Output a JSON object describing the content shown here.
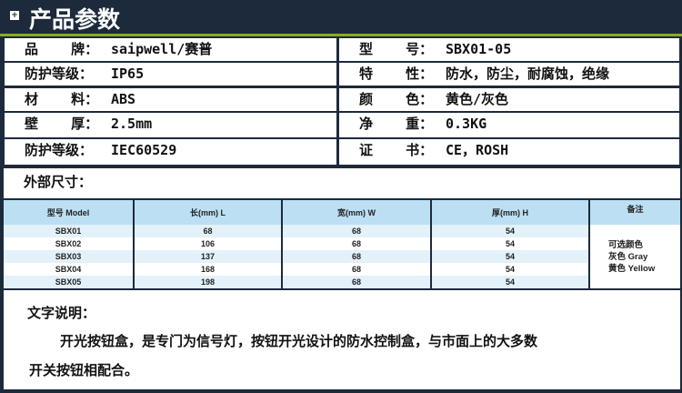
{
  "title": "产品参数",
  "specs_left": [
    {
      "k": "品    牌：",
      "v": "saipwell/赛普"
    },
    {
      "k": "防护等级：",
      "v": "IP65"
    },
    {
      "k": "材    料：",
      "v": "ABS"
    },
    {
      "k": "壁    厚：",
      "v": "2.5mm"
    },
    {
      "k": "防护等级：",
      "v": "IEC60529"
    }
  ],
  "specs_right": [
    {
      "k": "型    号：",
      "v": "SBX01-05"
    },
    {
      "k": "特    性：",
      "v": "防水，防尘，耐腐蚀，绝缘"
    },
    {
      "k": "颜    色：",
      "v": "黄色/灰色"
    },
    {
      "k": "净    重：",
      "v": "0.3KG"
    },
    {
      "k": "证    书：",
      "v": "CE，ROSH"
    }
  ],
  "dimensions_label": "外部尺寸：",
  "table": {
    "headers": [
      "型号 Model",
      "长(mm)  L",
      "宽(mm) W",
      "厚(mm) H",
      "备注"
    ],
    "rows": [
      [
        "SBX01",
        "68",
        "68",
        "54"
      ],
      [
        "SBX02",
        "106",
        "68",
        "54"
      ],
      [
        "SBX03",
        "137",
        "68",
        "54"
      ],
      [
        "SBX04",
        "168",
        "68",
        "54"
      ],
      [
        "SBX05",
        "198",
        "68",
        "54"
      ]
    ],
    "note": [
      "可选颜色",
      "灰色 Gray",
      "黄色 Yellow"
    ]
  },
  "description": {
    "heading": "文字说明：",
    "line1": "开光按钮盒，是专门为信号灯，按钮开光设计的防水控制盒，与市面上的大多数",
    "line2": "开关按钮相配合。"
  }
}
